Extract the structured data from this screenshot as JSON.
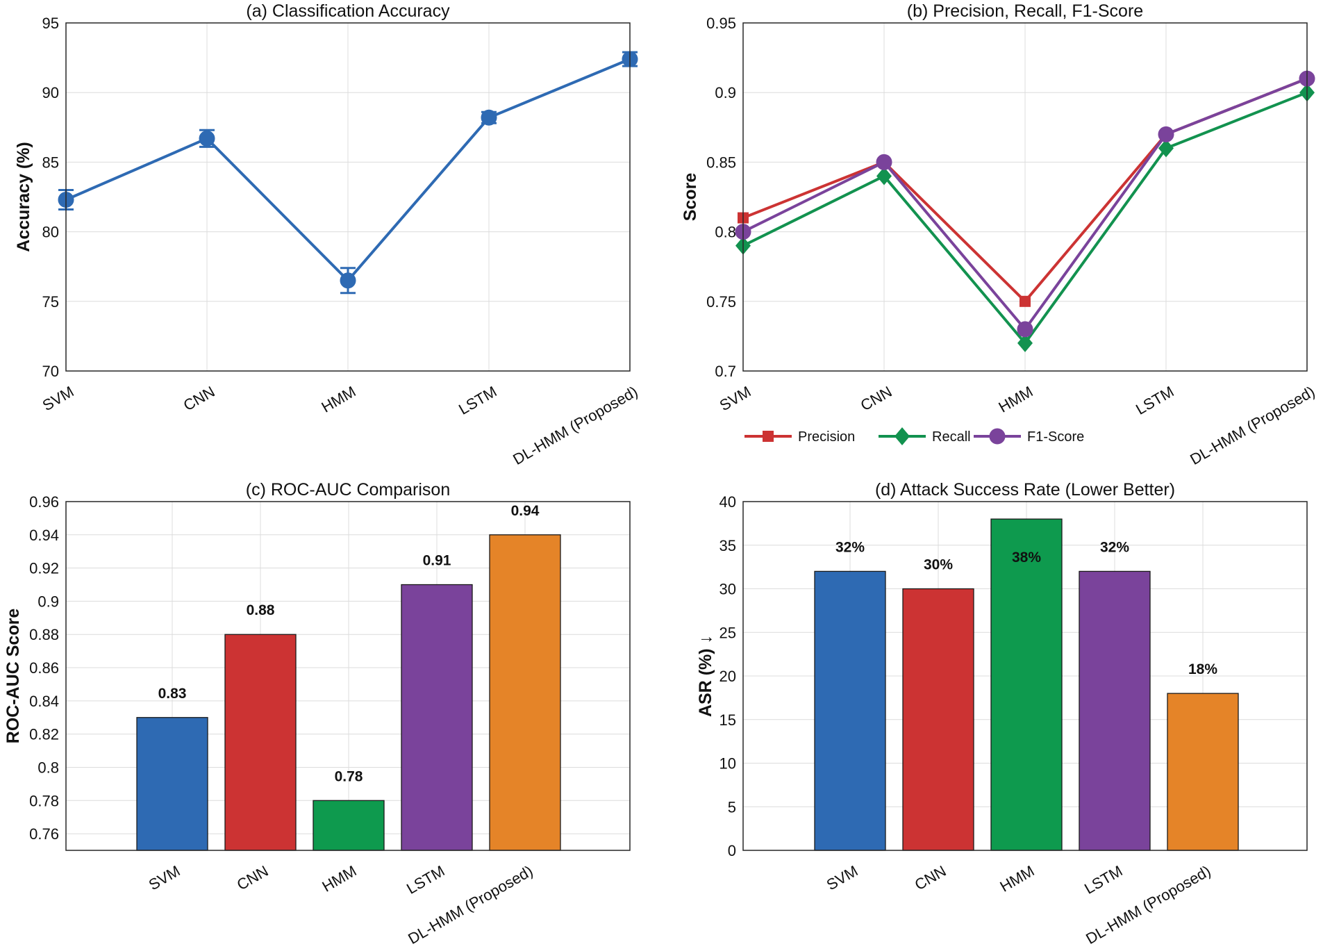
{
  "chart_data": [
    {
      "id": "a",
      "type": "line",
      "title": "(a) Classification Accuracy",
      "xlabel": "",
      "ylabel": "Accuracy (%)",
      "categories": [
        "SVM",
        "CNN",
        "HMM",
        "LSTM",
        "DL-HMM (Proposed)"
      ],
      "series": [
        {
          "name": "Accuracy",
          "values": [
            82.3,
            86.7,
            76.5,
            88.2,
            92.4
          ],
          "errors": [
            0.7,
            0.6,
            0.9,
            0.4,
            0.5
          ],
          "color": "#2e6ab3",
          "marker": "circle"
        }
      ],
      "ylim": [
        70,
        95
      ],
      "yticks": [
        70,
        75,
        80,
        85,
        90,
        95
      ],
      "ytick_labels": [
        "70",
        "75",
        "80",
        "85",
        "90",
        "95"
      ],
      "grid": true
    },
    {
      "id": "b",
      "type": "line",
      "title": "(b) Precision, Recall, F1-Score",
      "xlabel": "",
      "ylabel": "Score",
      "categories": [
        "SVM",
        "CNN",
        "HMM",
        "LSTM",
        "DL-HMM (Proposed)"
      ],
      "series": [
        {
          "name": "Precision",
          "values": [
            0.81,
            0.85,
            0.75,
            0.87,
            0.91
          ],
          "color": "#cc3333",
          "marker": "square"
        },
        {
          "name": "Recall",
          "values": [
            0.79,
            0.84,
            0.72,
            0.86,
            0.9
          ],
          "color": "#12924f",
          "marker": "diamond"
        },
        {
          "name": "F1-Score",
          "values": [
            0.8,
            0.85,
            0.73,
            0.87,
            0.91
          ],
          "color": "#7a439b",
          "marker": "circle"
        }
      ],
      "ylim": [
        0.7,
        0.95
      ],
      "yticks": [
        0.7,
        0.75,
        0.8,
        0.85,
        0.9,
        0.95
      ],
      "ytick_labels": [
        "0.7",
        "0.75",
        "0.8",
        "0.85",
        "0.9",
        "0.95"
      ],
      "legend": "bottom",
      "grid": true
    },
    {
      "id": "c",
      "type": "bar",
      "title": "(c) ROC-AUC Comparison",
      "xlabel": "",
      "ylabel": "ROC-AUC Score",
      "categories": [
        "SVM",
        "CNN",
        "HMM",
        "LSTM",
        "DL-HMM (Proposed)"
      ],
      "values": [
        0.83,
        0.88,
        0.78,
        0.91,
        0.94
      ],
      "data_labels": [
        "0.83",
        "0.88",
        "0.78",
        "0.91",
        "0.94"
      ],
      "colors": [
        "#2e6ab3",
        "#cc3333",
        "#0e9a4e",
        "#7a439b",
        "#e58428"
      ],
      "ylim": [
        0.75,
        0.96
      ],
      "yticks": [
        0.76,
        0.78,
        0.8,
        0.82,
        0.84,
        0.86,
        0.88,
        0.9,
        0.92,
        0.94,
        0.96
      ],
      "ytick_labels": [
        "0.76",
        "0.78",
        "0.8",
        "0.82",
        "0.84",
        "0.86",
        "0.88",
        "0.9",
        "0.92",
        "0.94",
        "0.96"
      ],
      "grid": true
    },
    {
      "id": "d",
      "type": "bar",
      "title": "(d) Attack Success Rate (Lower Better)",
      "xlabel": "",
      "ylabel": "ASR (%) ↓",
      "categories": [
        "SVM",
        "CNN",
        "HMM",
        "LSTM",
        "DL-HMM (Proposed)"
      ],
      "values": [
        32,
        30,
        38,
        32,
        18
      ],
      "data_labels": [
        "32%",
        "30%",
        "38%",
        "32%",
        "18%"
      ],
      "colors": [
        "#2e6ab3",
        "#cc3333",
        "#0e9a4e",
        "#7a439b",
        "#e58428"
      ],
      "ylim": [
        0,
        40
      ],
      "yticks": [
        0,
        5,
        10,
        15,
        20,
        25,
        30,
        35,
        40
      ],
      "ytick_labels": [
        "0",
        "5",
        "10",
        "15",
        "20",
        "25",
        "30",
        "35",
        "40"
      ],
      "grid": true
    }
  ]
}
